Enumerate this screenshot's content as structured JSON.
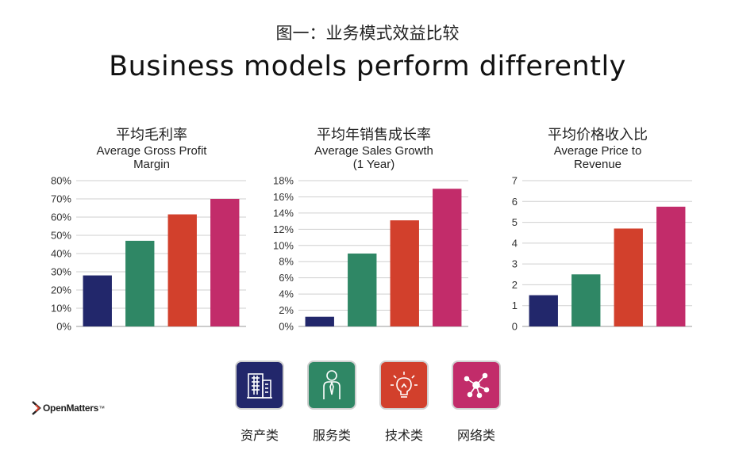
{
  "header": {
    "title_cn": "图一：业务模式效益比较",
    "title_en": "Business models perform differently"
  },
  "colors": {
    "asset": "#22276b",
    "service": "#2f8765",
    "technology": "#d2402c",
    "network": "#c22c6a"
  },
  "chart_data": [
    {
      "type": "bar",
      "title_cn": "平均毛利率",
      "title_en": [
        "Average Gross Profit",
        "Margin"
      ],
      "categories": [
        "资产类",
        "服务类",
        "技术类",
        "网络类"
      ],
      "values": [
        0.28,
        0.47,
        0.615,
        0.7
      ],
      "ylim": [
        0,
        0.8
      ],
      "yticks": [
        0,
        0.1,
        0.2,
        0.3,
        0.4,
        0.5,
        0.6,
        0.7,
        0.8
      ],
      "ytick_labels": [
        "0%",
        "10%",
        "20%",
        "30%",
        "40%",
        "50%",
        "60%",
        "70%",
        "80%"
      ],
      "grid": true
    },
    {
      "type": "bar",
      "title_cn": "平均年销售成长率",
      "title_en": [
        "Average Sales Growth",
        "(1 Year)"
      ],
      "categories": [
        "资产类",
        "服务类",
        "技术类",
        "网络类"
      ],
      "values": [
        0.012,
        0.09,
        0.131,
        0.17
      ],
      "ylim": [
        0,
        0.18
      ],
      "yticks": [
        0,
        0.02,
        0.04,
        0.06,
        0.08,
        0.1,
        0.12,
        0.14,
        0.16,
        0.18
      ],
      "ytick_labels": [
        "0%",
        "2%",
        "4%",
        "6%",
        "8%",
        "10%",
        "12%",
        "14%",
        "16%",
        "18%"
      ],
      "grid": true
    },
    {
      "type": "bar",
      "title_cn": "平均价格收入比",
      "title_en": [
        "Average Price to",
        "Revenue"
      ],
      "categories": [
        "资产类",
        "服务类",
        "技术类",
        "网络类"
      ],
      "values": [
        1.5,
        2.5,
        4.7,
        5.75
      ],
      "ylim": [
        0,
        7
      ],
      "yticks": [
        0,
        1,
        2,
        3,
        4,
        5,
        6,
        7
      ],
      "ytick_labels": [
        "0",
        "1",
        "2",
        "3",
        "4",
        "5",
        "6",
        "7"
      ],
      "grid": true
    }
  ],
  "categories": [
    {
      "label": "资产类",
      "icon": "building-icon"
    },
    {
      "label": "服务类",
      "icon": "person-icon"
    },
    {
      "label": "技术类",
      "icon": "lightbulb-icon"
    },
    {
      "label": "网络类",
      "icon": "network-icon"
    }
  ],
  "logo": {
    "text": "OpenMatters",
    "mark": "™"
  }
}
